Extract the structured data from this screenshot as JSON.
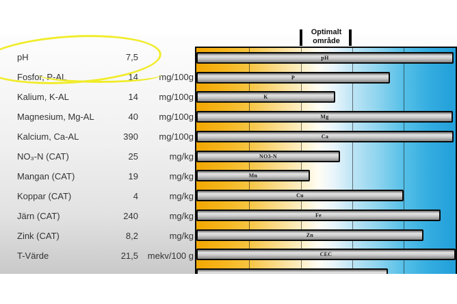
{
  "table": {
    "rows": [
      {
        "label": "pH",
        "value": "7,5",
        "unit": ""
      },
      {
        "label": "Fosfor, P-AL",
        "value": "14",
        "unit": "mg/100g"
      },
      {
        "label": "Kalium, K-AL",
        "value": "14",
        "unit": "mg/100g"
      },
      {
        "label": "Magnesium, Mg-AL",
        "value": "40",
        "unit": "mg/100g"
      },
      {
        "label": "Kalcium, Ca-AL",
        "value": "390",
        "unit": "mg/100g"
      },
      {
        "label": "NO₃-N (CAT)",
        "value": "25",
        "unit": "mg/kg"
      },
      {
        "label": "Mangan (CAT)",
        "value": "19",
        "unit": "mg/kg"
      },
      {
        "label": "Koppar (CAT)",
        "value": "4",
        "unit": "mg/kg"
      },
      {
        "label": "Järn (CAT)",
        "value": "240",
        "unit": "mg/kg"
      },
      {
        "label": "Zink (CAT)",
        "value": "8,2",
        "unit": "mg/kg"
      },
      {
        "label": "T-Värde",
        "value": "21,5",
        "unit": "mekv/100 g"
      }
    ]
  },
  "chart_data": {
    "type": "bar",
    "orientation": "horizontal",
    "header": {
      "line1": "Optimalt",
      "line2": "område"
    },
    "categories": [
      "pH",
      "P",
      "K",
      "Mg",
      "Ca",
      "NO3-N",
      "Mn",
      "Cu",
      "Fe",
      "Zn",
      "CEC",
      ""
    ],
    "length_pct": [
      99.2,
      74.7,
      53.6,
      98.9,
      99.2,
      55.4,
      43.8,
      79.9,
      94.2,
      87.6,
      100,
      73.9
    ],
    "measured_values": [
      7.5,
      14,
      14,
      40,
      390,
      25,
      19,
      4,
      240,
      8.2,
      21.5,
      null
    ],
    "optimal_range_pct": [
      40.4,
      59.4
    ],
    "gridlines_pct": [
      20.4,
      40.5,
      60.1,
      79.9
    ],
    "legend": "none",
    "note": "bar length = level relative to optimal range band; background gold (low) to blue (high)"
  },
  "colors": {
    "low_zone_gold": "#f2a702",
    "high_zone_blue": "#2aa7dc",
    "bar_gray": "#c9c9c9",
    "highlight_yellow": "#f0ec2a",
    "text": "#333333"
  }
}
